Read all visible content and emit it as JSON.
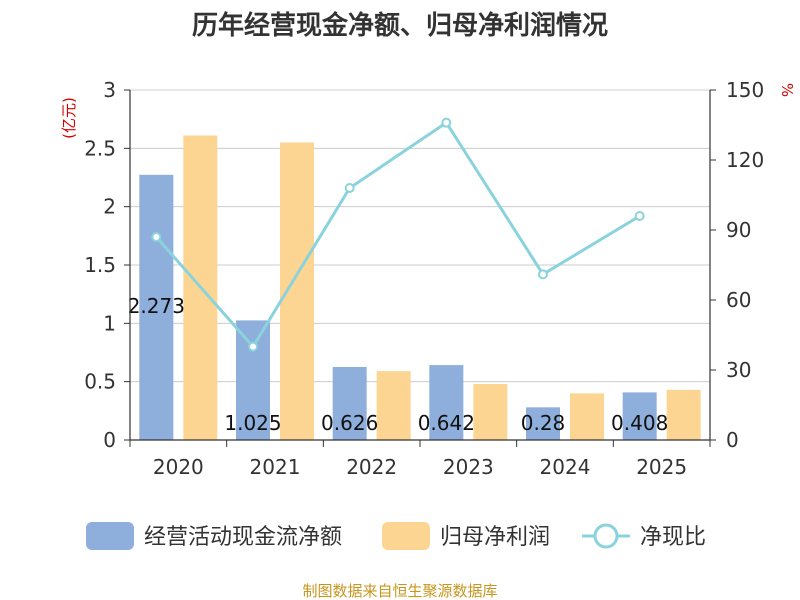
{
  "chart_data": {
    "type": "bar",
    "title": "历年经营现金净额、归母净利润情况",
    "categories": [
      "2020",
      "2021",
      "2022",
      "2023",
      "2024",
      "2025"
    ],
    "series": [
      {
        "name": "经营活动现金流净额",
        "type": "bar",
        "axis": "left",
        "color": "#8eaedc",
        "values": [
          2.273,
          1.025,
          0.626,
          0.642,
          0.28,
          0.408
        ],
        "labels": [
          "2.273",
          "1.025",
          "0.626",
          "0.642",
          "0.28",
          "0.408"
        ]
      },
      {
        "name": "归母净利润",
        "type": "bar",
        "axis": "left",
        "color": "#fdd592",
        "values": [
          2.61,
          2.55,
          0.59,
          0.48,
          0.4,
          0.43
        ]
      },
      {
        "name": "净现比",
        "type": "line",
        "axis": "right",
        "color": "#8ad3dc",
        "values": [
          87,
          40,
          108,
          136,
          71,
          96
        ]
      }
    ],
    "y_left": {
      "label": "(亿元)",
      "min": 0,
      "max": 3,
      "ticks": [
        "0",
        "0.5",
        "1",
        "1.5",
        "2",
        "2.5",
        "3"
      ]
    },
    "y_right": {
      "label": "%",
      "min": 0,
      "max": 150,
      "ticks": [
        "0",
        "30",
        "60",
        "90",
        "120",
        "150"
      ]
    },
    "grid": true,
    "legend_position": "bottom"
  },
  "footer": {
    "source": "制图数据来自恒生聚源数据库"
  }
}
